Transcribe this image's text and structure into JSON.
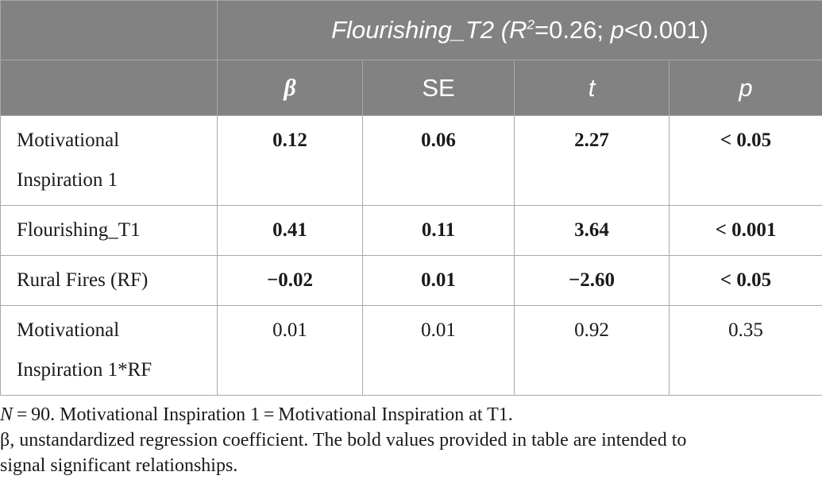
{
  "table": {
    "header_title_prefix": "Flourishing_T2 (",
    "header_r": "R",
    "header_sup": "2",
    "header_title_mid": "=0.26; ",
    "header_p": "p",
    "header_title_suffix": "<0.001)",
    "columns": [
      "β",
      "SE",
      "t",
      "p"
    ],
    "rows": [
      {
        "label_line1": "Motivational",
        "label_line2": "Inspiration 1",
        "beta": "0.12",
        "se": "0.06",
        "t": "2.27",
        "p": "< 0.05",
        "significant": true
      },
      {
        "label_line1": "Flourishing_T1",
        "beta": "0.41",
        "se": "0.11",
        "t": "3.64",
        "p": "< 0.001",
        "significant": true
      },
      {
        "label_line1": "Rural Fires (RF)",
        "beta": "−0.02",
        "se": "0.01",
        "t": "−2.60",
        "p": "< 0.05",
        "significant": true
      },
      {
        "label_line1": "Motivational",
        "label_line2": "Inspiration 1*RF",
        "beta": "0.01",
        "se": "0.01",
        "t": "0.92",
        "p": "0.35",
        "significant": false
      }
    ]
  },
  "notes": {
    "line1_n": "N",
    "line1_rest": " = 90. Motivational Inspiration 1 = Motivational Inspiration at T1.",
    "line2": "β, unstandardized regression coefficient. The bold values provided in table are intended to",
    "line3": "signal significant relationships."
  },
  "colors": {
    "header_bg": "#828282",
    "header_text": "#ffffff",
    "border": "#a9a9a9"
  }
}
